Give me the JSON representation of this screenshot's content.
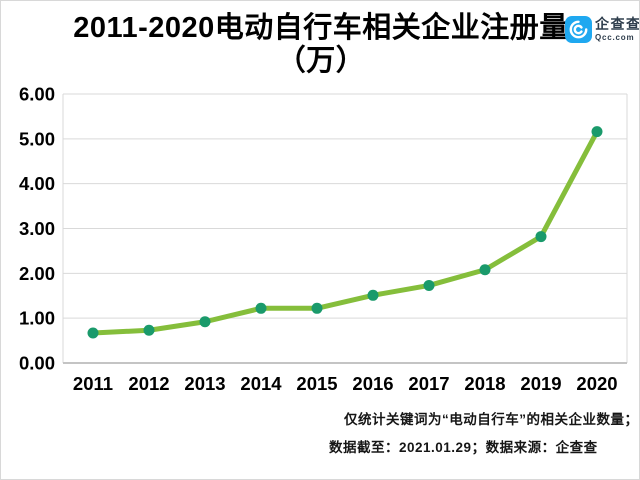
{
  "header": {
    "title_line1": "2011-2020电动自行车相关企业注册量",
    "title_line2": "（万）"
  },
  "logo": {
    "name": "企查查",
    "domain": "Qcc.com",
    "brand_color": "#1FA8F0",
    "icon": "qcc-spiral-c-icon"
  },
  "chart_data": {
    "type": "line",
    "title": "2011-2020电动自行车相关企业注册量（万）",
    "categories": [
      "2011",
      "2012",
      "2013",
      "2014",
      "2015",
      "2016",
      "2017",
      "2018",
      "2019",
      "2020"
    ],
    "values": [
      0.67,
      0.73,
      0.92,
      1.22,
      1.22,
      1.51,
      1.73,
      2.08,
      2.82,
      5.16
    ],
    "series_name": "电动自行车相关企业注册量",
    "xlabel": "",
    "ylabel": "",
    "ylim": [
      0,
      6
    ],
    "y_ticks": [
      "0.00",
      "1.00",
      "2.00",
      "3.00",
      "4.00",
      "5.00",
      "6.00"
    ],
    "grid": true,
    "legend": "none",
    "line_color": "#85BE3B",
    "marker_color": "#1A9A6B",
    "gridline_color": "#d9d9d9",
    "axis_line_color": "#c4c4c4",
    "tick_label_color": "#000000"
  },
  "footnote": {
    "line1": "仅统计关键词为“电动自行车”的相关企业数量；",
    "line2": "数据截至：2021.01.29；数据来源：企查查"
  }
}
